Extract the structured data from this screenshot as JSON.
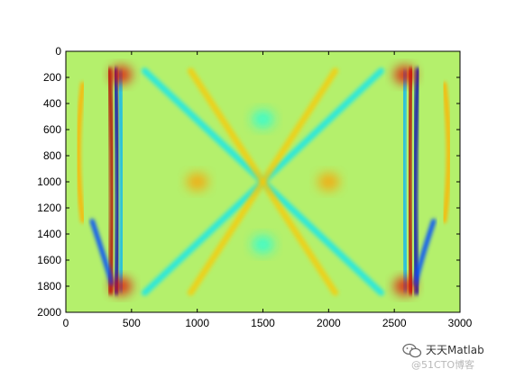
{
  "chart_data": {
    "type": "heatmap",
    "title": "",
    "xlabel": "",
    "ylabel": "",
    "colormap": "jet",
    "background_color": "#ffffff",
    "baseline_color": "#b4f06c",
    "xlim": [
      0,
      3000
    ],
    "ylim": [
      2000,
      0
    ],
    "y_axis_reversed": true,
    "grid": false,
    "x_ticks": [
      0,
      500,
      1000,
      1500,
      2000,
      2500,
      3000
    ],
    "x_tick_labels": [
      "0",
      "500",
      "1000",
      "1500",
      "2000",
      "2500",
      "3000"
    ],
    "y_ticks": [
      0,
      200,
      400,
      600,
      800,
      1000,
      1200,
      1400,
      1600,
      1800,
      2000
    ],
    "y_tick_labels": [
      "0",
      "200",
      "400",
      "600",
      "800",
      "1000",
      "1200",
      "1400",
      "1600",
      "1800",
      "2000"
    ],
    "features": [
      {
        "kind": "band",
        "x": [
          [
            330,
            140
          ],
          [
            370,
            1000
          ],
          [
            340,
            1850
          ]
        ],
        "value": 0.95
      },
      {
        "kind": "band",
        "x": [
          [
            375,
            140
          ],
          [
            410,
            1000
          ],
          [
            385,
            1850
          ]
        ],
        "value": 0.05
      },
      {
        "kind": "band",
        "x": [
          [
            410,
            160
          ],
          [
            440,
            1000
          ],
          [
            420,
            1830
          ]
        ],
        "value": 0.3
      },
      {
        "kind": "band",
        "x": [
          [
            2680,
            140
          ],
          [
            2640,
            1000
          ],
          [
            2670,
            1850
          ]
        ],
        "value": 0.05
      },
      {
        "kind": "band",
        "x": [
          [
            2630,
            140
          ],
          [
            2600,
            1000
          ],
          [
            2630,
            1850
          ]
        ],
        "value": 0.95
      },
      {
        "kind": "band",
        "x": [
          [
            2580,
            160
          ],
          [
            2560,
            1000
          ],
          [
            2590,
            1830
          ]
        ],
        "value": 0.3
      },
      {
        "kind": "band",
        "x": [
          [
            130,
            250
          ],
          [
            60,
            800
          ],
          [
            130,
            1300
          ]
        ],
        "value": 0.7
      },
      {
        "kind": "band",
        "x": [
          [
            2880,
            250
          ],
          [
            2950,
            800
          ],
          [
            2880,
            1300
          ]
        ],
        "value": 0.7
      },
      {
        "kind": "band",
        "x": [
          [
            200,
            1300
          ],
          [
            300,
            1600
          ],
          [
            350,
            1780
          ]
        ],
        "value": 0.2
      },
      {
        "kind": "band",
        "x": [
          [
            2800,
            1300
          ],
          [
            2700,
            1600
          ],
          [
            2660,
            1780
          ]
        ],
        "value": 0.2
      },
      {
        "kind": "line",
        "from": [
          600,
          150
        ],
        "to": [
          2400,
          1850
        ],
        "value": 0.35
      },
      {
        "kind": "line",
        "from": [
          2400,
          150
        ],
        "to": [
          600,
          1850
        ],
        "value": 0.35
      },
      {
        "kind": "line",
        "from": [
          950,
          150
        ],
        "to": [
          2050,
          1850
        ],
        "value": 0.68
      },
      {
        "kind": "line",
        "from": [
          2050,
          150
        ],
        "to": [
          950,
          1850
        ],
        "value": 0.68
      },
      {
        "kind": "blob",
        "center": [
          1000,
          1000
        ],
        "value": 0.72
      },
      {
        "kind": "blob",
        "center": [
          2000,
          1000
        ],
        "value": 0.72
      },
      {
        "kind": "blob",
        "center": [
          1500,
          520
        ],
        "value": 0.4
      },
      {
        "kind": "blob",
        "center": [
          1500,
          1480
        ],
        "value": 0.4
      },
      {
        "kind": "blob",
        "center": [
          420,
          1800
        ],
        "value": 0.9
      },
      {
        "kind": "blob",
        "center": [
          2580,
          1800
        ],
        "value": 0.9
      },
      {
        "kind": "blob",
        "center": [
          420,
          180
        ],
        "value": 0.9
      },
      {
        "kind": "blob",
        "center": [
          2580,
          180
        ],
        "value": 0.9
      }
    ]
  },
  "watermark": {
    "logo_icon": "wechat-logo-icon",
    "name": "天天Matlab",
    "sub": "@51CTO博客"
  }
}
